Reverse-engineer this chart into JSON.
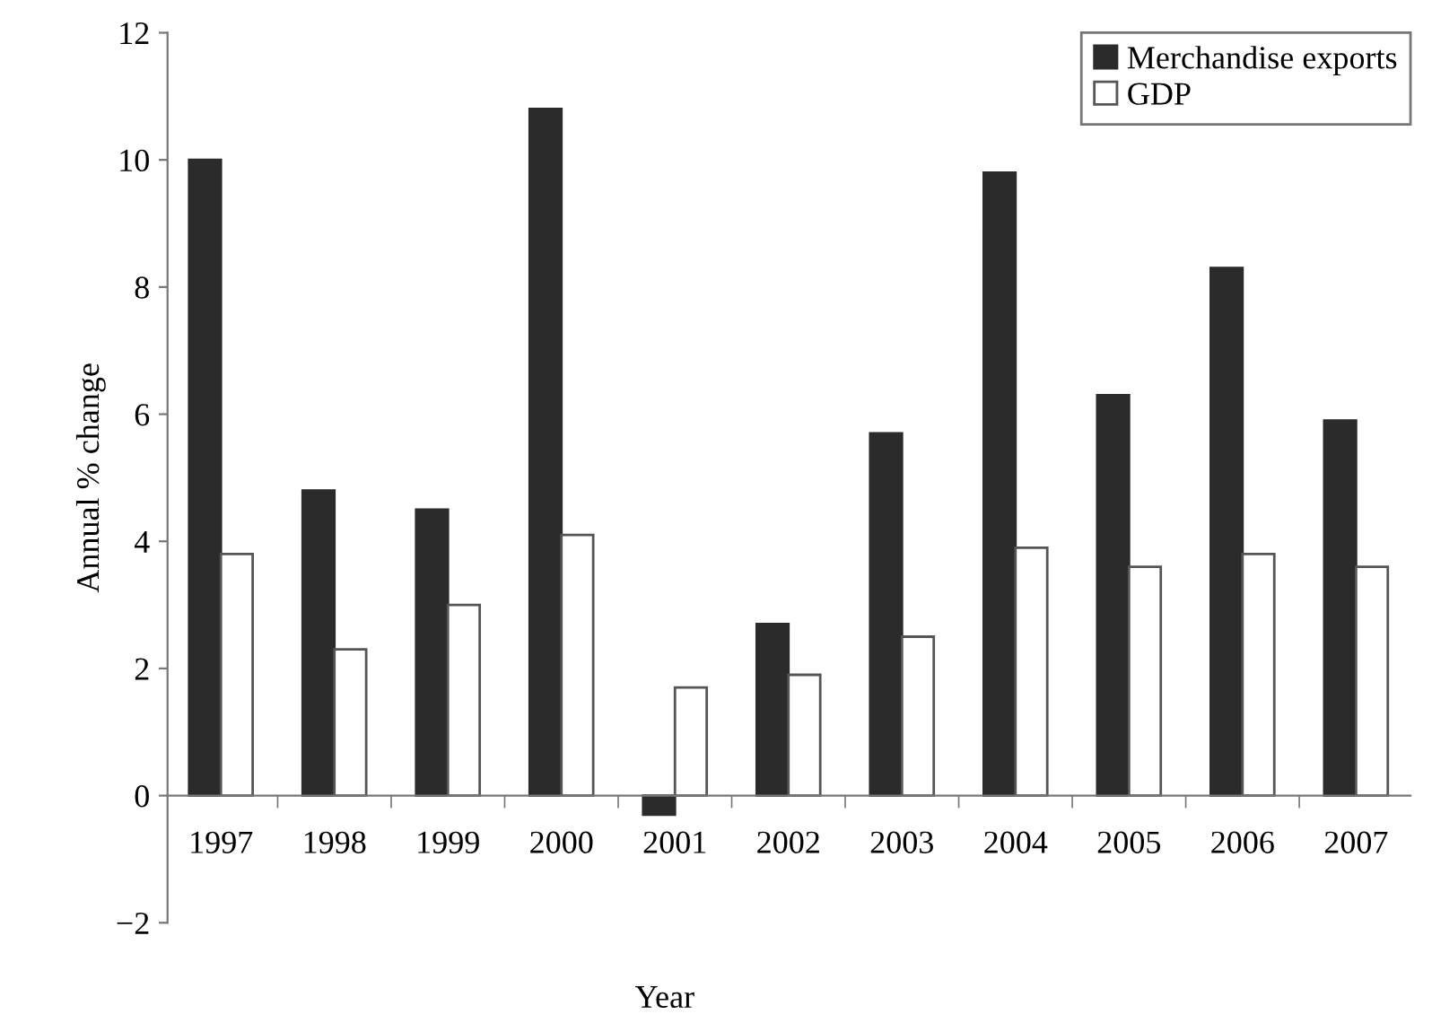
{
  "chart_data": {
    "type": "bar",
    "xlabel": "Year",
    "ylabel": "Annual % change",
    "categories": [
      "1997",
      "1998",
      "1999",
      "2000",
      "2001",
      "2002",
      "2003",
      "2004",
      "2005",
      "2006",
      "2007"
    ],
    "series": [
      {
        "name": "Merchandise exports",
        "color": "#2b2b2b",
        "values": [
          10.0,
          4.8,
          4.5,
          10.8,
          -0.3,
          2.7,
          5.7,
          9.8,
          6.3,
          8.3,
          5.9
        ]
      },
      {
        "name": "GDP",
        "color": "#ffffff",
        "values": [
          3.8,
          2.3,
          3.0,
          4.1,
          1.7,
          1.9,
          2.5,
          3.9,
          3.6,
          3.8,
          3.6
        ]
      }
    ],
    "ylim": [
      -2,
      12
    ],
    "yticks": [
      -2,
      0,
      2,
      4,
      6,
      8,
      10,
      12
    ],
    "grid": false,
    "legend": "top right"
  }
}
